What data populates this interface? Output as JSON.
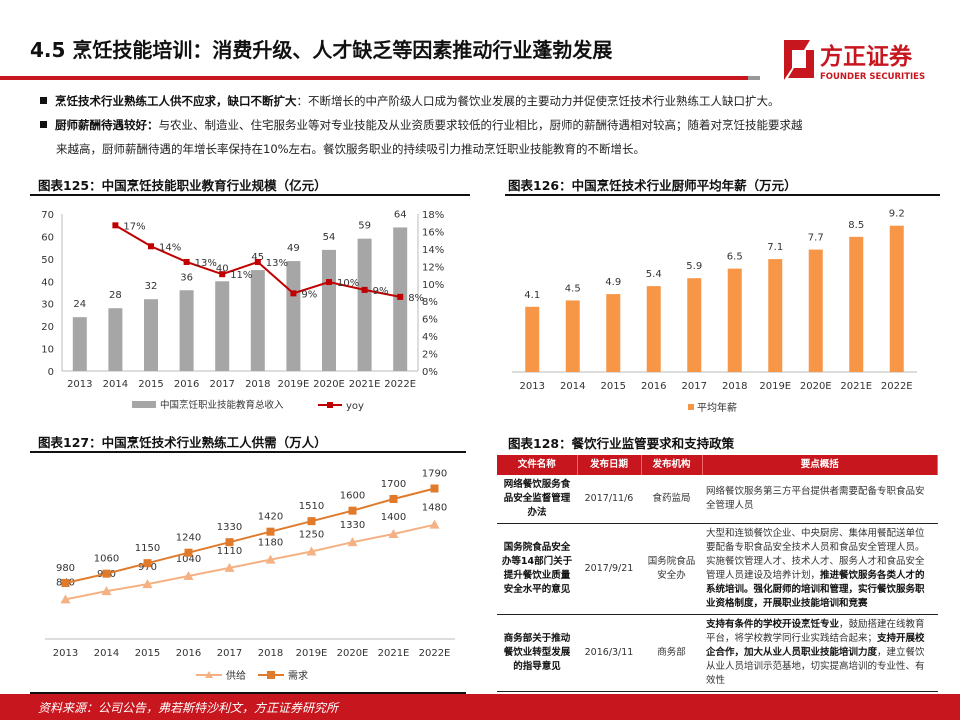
{
  "header": {
    "title": "4.5 烹饪技能培训：消费升级、人才缺乏等因素推动行业蓬勃发展",
    "logo_cn": "方正证券",
    "logo_en": "FOUNDER SECURITIES",
    "accent": "#c8161e"
  },
  "bullets": [
    {
      "bold": "烹饪技术行业熟练工人供不应求，缺口不断扩大",
      "text": "：不断增长的中产阶级人口成为餐饮业发展的主要动力并促使烹饪技术行业熟练工人缺口扩大。"
    },
    {
      "bold": "厨师薪酬待遇较好：",
      "text": "与农业、制造业、住宅服务业等对专业技能及从业资质要求较低的行业相比，厨师的薪酬待遇相对较高；随着对烹饪技能要求越",
      "text2": "来越高，厨师薪酬待遇的年增长率保持在10%左右。餐饮服务职业的持续吸引力推动烹饪职业技能教育的不断增长。"
    }
  ],
  "chart_data": [
    {
      "type": "bar",
      "title": "图表125：中国烹饪技能职业教育行业规模（亿元）",
      "categories": [
        "2013",
        "2014",
        "2015",
        "2016",
        "2017",
        "2018",
        "2019E",
        "2020E",
        "2021E",
        "2022E"
      ],
      "series": [
        {
          "name": "中国烹饪职业技能教育总收入",
          "type": "bar",
          "axis": "left",
          "color": "#a6a6a6",
          "values": [
            24,
            28,
            32,
            36,
            40,
            45,
            49,
            54,
            59,
            64
          ],
          "labels": [
            "24",
            "28",
            "32",
            "36",
            "40",
            "45",
            "49",
            "54",
            "59",
            "64"
          ]
        },
        {
          "name": "yoy",
          "type": "line",
          "axis": "right",
          "color": "#c00000",
          "values": [
            null,
            16.7,
            14.3,
            12.5,
            11.1,
            12.5,
            8.9,
            10.2,
            9.3,
            8.5
          ],
          "labels": [
            "",
            "17%",
            "14%",
            "13%",
            "11%",
            "13%",
            "9%",
            "10%",
            "9%",
            "8%"
          ]
        }
      ],
      "ylim": [
        0,
        70
      ],
      "yticks": [
        "0",
        "10",
        "20",
        "30",
        "40",
        "50",
        "60",
        "70"
      ],
      "y2lim": [
        0,
        18
      ],
      "y2ticks": [
        "0%",
        "2%",
        "4%",
        "6%",
        "8%",
        "10%",
        "12%",
        "14%",
        "16%",
        "18%"
      ],
      "legend": "bottom",
      "grid": false
    },
    {
      "type": "bar",
      "title": "图表126：中国烹饪技术行业厨师平均年薪（万元）",
      "categories": [
        "2013",
        "2014",
        "2015",
        "2016",
        "2017",
        "2018",
        "2019E",
        "2020E",
        "2021E",
        "2022E"
      ],
      "series": [
        {
          "name": "平均年薪",
          "color": "#f79646",
          "values": [
            4.1,
            4.5,
            4.9,
            5.4,
            5.9,
            6.5,
            7.1,
            7.7,
            8.5,
            9.2
          ],
          "labels": [
            "4.1",
            "4.5",
            "4.9",
            "5.4",
            "5.9",
            "6.5",
            "7.1",
            "7.7",
            "8.5",
            "9.2"
          ]
        }
      ],
      "ylim": [
        0,
        10
      ],
      "legend": "bottom",
      "grid": false
    },
    {
      "type": "line",
      "title": "图表127：中国烹饪技术行业熟练工人供需（万人）",
      "categories": [
        "2013",
        "2014",
        "2015",
        "2016",
        "2017",
        "2018",
        "2019E",
        "2020E",
        "2021E",
        "2022E"
      ],
      "series": [
        {
          "name": "供给",
          "color": "#f4b183",
          "marker": "triangle",
          "values": [
            840,
            910,
            970,
            1040,
            1110,
            1180,
            1250,
            1330,
            1400,
            1480
          ],
          "labels": [
            "840",
            "910",
            "970",
            "1040",
            "1110",
            "1180",
            "1250",
            "1330",
            "1400",
            "1480"
          ]
        },
        {
          "name": "需求",
          "color": "#e07b2c",
          "marker": "square",
          "values": [
            980,
            1060,
            1150,
            1240,
            1330,
            1420,
            1510,
            1600,
            1700,
            1790
          ],
          "labels": [
            "980",
            "1060",
            "1150",
            "1240",
            "1330",
            "1420",
            "1510",
            "1600",
            "1700",
            "1790"
          ]
        }
      ],
      "ylim": [
        500,
        2000
      ],
      "legend": "bottom",
      "grid": false
    }
  ],
  "table": {
    "title": "图表128：餐饮行业监管要求和支持政策",
    "headers": [
      "文件名称",
      "发布日期",
      "发布机构",
      "要点概括"
    ],
    "rows": [
      {
        "name": "网络餐饮服务食品安全监督管理办法",
        "date": "2017/11/6",
        "org": "食药监局",
        "summary": [
          {
            "t": "网络餐饮服务第三方平台提供者需要配备专职食品安全管理人员",
            "b": false
          }
        ]
      },
      {
        "name": "国务院食品安全办等14部门关于提升餐饮业质量安全水平的意见",
        "date": "2017/9/21",
        "org": "国务院食品安全办",
        "summary": [
          {
            "t": "大型和连锁餐饮企业、中央厨房、集体用餐配送单位要配备专职食品安全技术人员和食品安全管理人员。实施餐饮管理人才、技术人才、服务人才和食品安全管理人员建设及培养计划，",
            "b": false
          },
          {
            "t": "推进餐饮服务各类人才的系统培训。强化厨师的培训和管理，实行餐饮服务职业资格制度，开展职业技能培训和竞赛",
            "b": true
          }
        ]
      },
      {
        "name": "商务部关于推动餐饮业转型发展的指导意见",
        "date": "2016/3/11",
        "org": "商务部",
        "summary": [
          {
            "t": "支持有条件的学校开设烹饪专业",
            "b": true
          },
          {
            "t": "，鼓励搭建在线教育平台，将学校教学同行业实践结合起来；",
            "b": false
          },
          {
            "t": "支持开展校企合作，加大从业人员职业技能培训力度",
            "b": true
          },
          {
            "t": "，建立餐饮从业人员培训示范基地，切实提高培训的专业性、有效性",
            "b": false
          }
        ]
      }
    ]
  },
  "footer": {
    "source": "资料来源：公司公告，弗若斯特沙利文，方正证券研究所"
  }
}
